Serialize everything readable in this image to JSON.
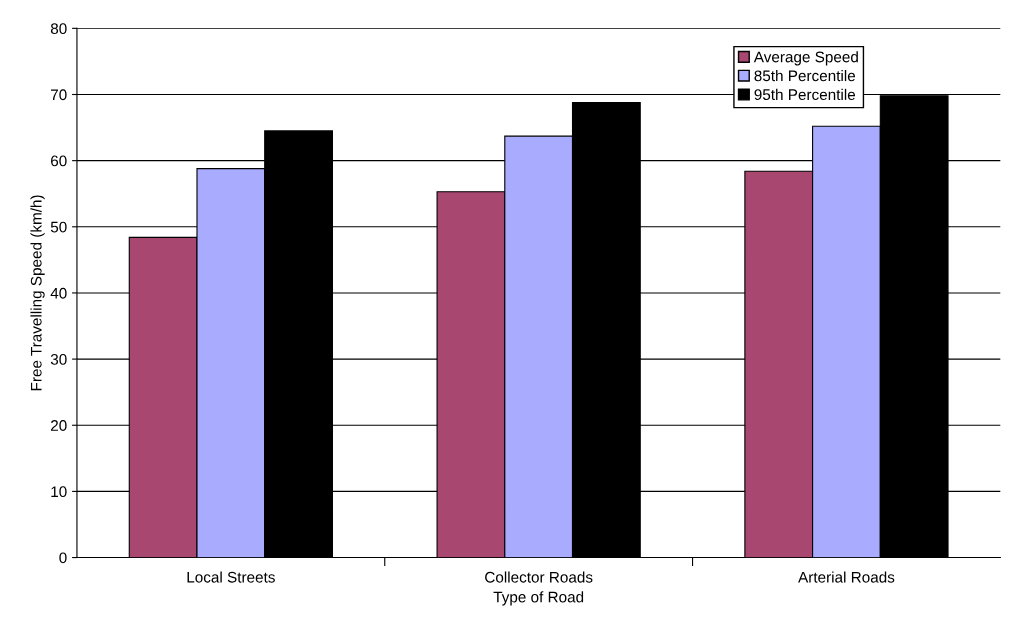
{
  "chart_data": {
    "type": "bar",
    "xlabel": "Type of Road",
    "ylabel": "Free Travelling Speed (km/h)",
    "categories": [
      "Local Streets",
      "Collector Roads",
      "Arterial Roads"
    ],
    "series": [
      {
        "name": "Average Speed",
        "color": "#a8476f",
        "values": [
          48.4,
          55.3,
          58.4
        ]
      },
      {
        "name": "85th Percentile",
        "color": "#a9abff",
        "values": [
          58.8,
          63.7,
          65.2
        ]
      },
      {
        "name": "95th Percentile",
        "color": "#000000",
        "values": [
          64.5,
          68.8,
          69.8
        ]
      }
    ],
    "ylim": [
      0,
      80
    ],
    "yticks": [
      0,
      10,
      20,
      30,
      40,
      50,
      60,
      70,
      80
    ],
    "grid": "y",
    "legend": "top right"
  }
}
